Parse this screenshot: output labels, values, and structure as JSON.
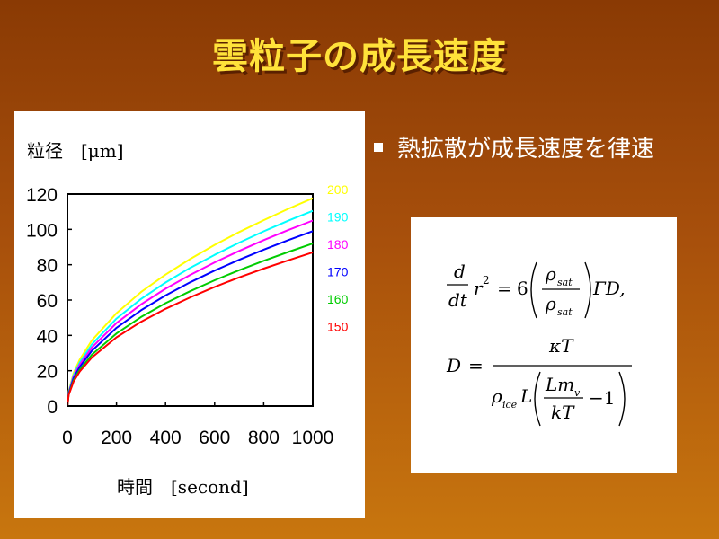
{
  "slide": {
    "title": "雲粒子の成長速度",
    "bullet": "熱拡散が成長速度を律速"
  },
  "chart_data": {
    "type": "line",
    "ylabel": "粒径　[μm]",
    "xlabel": "時間　[second]",
    "xlim": [
      0,
      1000
    ],
    "ylim": [
      0,
      120
    ],
    "xticks": [
      0,
      200,
      400,
      600,
      800,
      1000
    ],
    "yticks": [
      0,
      20,
      40,
      60,
      80,
      100,
      120
    ],
    "grid": false,
    "legend_position": "right",
    "x": [
      0,
      5,
      25,
      50,
      100,
      200,
      300,
      400,
      500,
      600,
      700,
      800,
      900,
      1000
    ],
    "series": [
      {
        "name": "200",
        "color": "#ffff00",
        "values": [
          0,
          8.3,
          18.6,
          26.3,
          37.2,
          52.6,
          64.5,
          74.4,
          83.2,
          91.2,
          98.5,
          105.2,
          111.6,
          117.6
        ]
      },
      {
        "name": "190",
        "color": "#00ffff",
        "values": [
          0,
          7.8,
          17.5,
          24.7,
          35.0,
          49.5,
          60.6,
          69.9,
          78.2,
          85.6,
          92.5,
          98.9,
          104.9,
          110.5
        ]
      },
      {
        "name": "180",
        "color": "#ff00ff",
        "values": [
          0,
          7.4,
          16.6,
          23.5,
          33.2,
          47.0,
          57.5,
          66.4,
          74.2,
          81.3,
          87.8,
          93.9,
          99.6,
          105.0
        ]
      },
      {
        "name": "170",
        "color": "#0000ff",
        "values": [
          0,
          7.0,
          15.7,
          22.1,
          31.3,
          44.3,
          54.2,
          62.6,
          70.0,
          76.7,
          82.8,
          88.5,
          93.9,
          99.0
        ]
      },
      {
        "name": "160",
        "color": "#00cc00",
        "values": [
          0,
          6.5,
          14.5,
          20.6,
          29.1,
          41.1,
          50.4,
          58.2,
          65.0,
          71.2,
          76.9,
          82.2,
          87.2,
          92.0
        ]
      },
      {
        "name": "150",
        "color": "#ff0000",
        "values": [
          0,
          6.2,
          13.8,
          19.5,
          27.5,
          38.9,
          47.7,
          55.0,
          61.5,
          67.4,
          72.8,
          77.8,
          82.5,
          87.0
        ]
      }
    ]
  },
  "formula": {
    "eq1": {
      "d": "d",
      "dt": "dt",
      "r": "r",
      "r_exp": "2",
      "eq": "=",
      "six": "6",
      "rho": "ρ",
      "sat": "sat",
      "tail": "ΓD,"
    },
    "eq2": {
      "D": "D",
      "eq": "=",
      "kT": "κT",
      "rho": "ρ",
      "ice": "ice",
      "L": "L",
      "Lm": "Lm",
      "v": "v",
      "kT2": "kT",
      "minus1": "−1"
    }
  }
}
